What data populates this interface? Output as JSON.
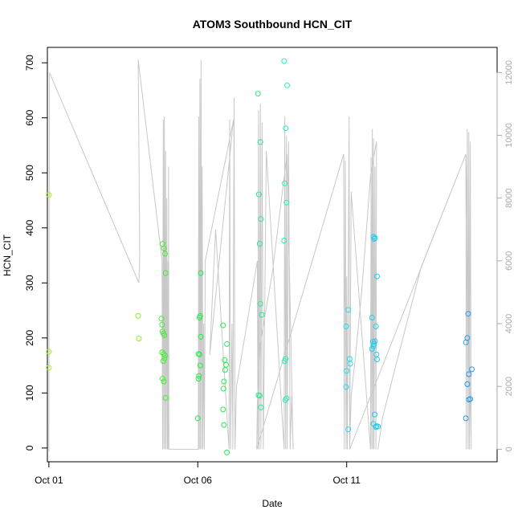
{
  "chart_data": {
    "type": "scatter",
    "title": "ATOM3 Southbound HCN_CIT",
    "xlabel": "Date",
    "ylabel": "HCN_CIT",
    "xlim": [
      -0.05,
      15.05
    ],
    "ylim": [
      -25,
      728
    ],
    "y2lim": [
      -400,
      12800
    ],
    "x_ticks": [
      {
        "value": 0,
        "label": "Oct 01"
      },
      {
        "value": 5,
        "label": "Oct 06"
      },
      {
        "value": 10,
        "label": "Oct 11"
      }
    ],
    "y_ticks": [
      0,
      100,
      200,
      300,
      400,
      500,
      600,
      700
    ],
    "y2_ticks": [
      0,
      2000,
      4000,
      6000,
      8000,
      10000,
      12000
    ],
    "grid": false,
    "secondary_series": {
      "color": "#c8c8c8",
      "points": [
        [
          0.0,
          -80
        ],
        [
          0.02,
          12000
        ],
        [
          3.02,
          5300
        ],
        [
          3.05,
          6100
        ],
        [
          3.0,
          12400
        ],
        [
          3.8,
          6000
        ],
        [
          3.82,
          0
        ],
        [
          3.84,
          10500
        ],
        [
          3.86,
          0
        ],
        [
          3.88,
          10600
        ],
        [
          3.9,
          0
        ],
        [
          3.92,
          9500
        ],
        [
          3.94,
          0
        ],
        [
          3.96,
          8000
        ],
        [
          3.98,
          0
        ],
        [
          4.0,
          6000
        ],
        [
          4.01,
          0
        ],
        [
          4.02,
          9000
        ],
        [
          4.03,
          0
        ],
        [
          5.02,
          0
        ],
        [
          5.03,
          10600
        ],
        [
          5.05,
          0
        ],
        [
          5.07,
          11800
        ],
        [
          5.09,
          0
        ],
        [
          5.11,
          12400
        ],
        [
          5.13,
          0
        ],
        [
          5.15,
          9000
        ],
        [
          5.17,
          0
        ],
        [
          5.2,
          4000
        ],
        [
          5.22,
          0
        ],
        [
          5.25,
          6000
        ],
        [
          6.2,
          10500
        ],
        [
          5.4,
          3000
        ],
        [
          5.6,
          7000
        ],
        [
          6.05,
          0
        ],
        [
          6.07,
          10500
        ],
        [
          6.1,
          0
        ],
        [
          6.15,
          4000
        ],
        [
          6.18,
          0
        ],
        [
          6.22,
          11200
        ],
        [
          6.25,
          0
        ],
        [
          6.3,
          2000
        ],
        [
          7.0,
          6000
        ],
        [
          7.02,
          0
        ],
        [
          7.04,
          10800
        ],
        [
          7.06,
          0
        ],
        [
          7.1,
          11000
        ],
        [
          7.12,
          0
        ],
        [
          7.16,
          10400
        ],
        [
          7.2,
          0
        ],
        [
          7.3,
          9500
        ],
        [
          7.9,
          0
        ],
        [
          7.92,
          10600
        ],
        [
          7.95,
          0
        ],
        [
          7.98,
          10000
        ],
        [
          8.0,
          0
        ],
        [
          8.05,
          9800
        ],
        [
          8.1,
          0
        ],
        [
          8.15,
          1700
        ],
        [
          8.2,
          0
        ],
        [
          8.0,
          9400
        ],
        [
          7.5,
          5600
        ],
        [
          7.1,
          3400
        ],
        [
          7.0,
          1500
        ],
        [
          6.98,
          0
        ],
        [
          9.9,
          9400
        ],
        [
          9.92,
          0
        ],
        [
          9.95,
          9200
        ],
        [
          9.98,
          0
        ],
        [
          10.0,
          5500
        ],
        [
          10.02,
          0
        ],
        [
          10.08,
          10600
        ],
        [
          10.1,
          0
        ],
        [
          10.15,
          8200
        ],
        [
          10.8,
          0
        ],
        [
          10.82,
          9300
        ],
        [
          10.84,
          0
        ],
        [
          10.86,
          10200
        ],
        [
          10.88,
          0
        ],
        [
          10.9,
          9900
        ],
        [
          10.92,
          0
        ],
        [
          10.95,
          9000
        ],
        [
          10.98,
          0
        ],
        [
          11.0,
          9800
        ],
        [
          10.8,
          8700
        ],
        [
          10.5,
          5000
        ],
        [
          10.3,
          3000
        ],
        [
          10.15,
          1700
        ],
        [
          10.1,
          0
        ],
        [
          14.0,
          9400
        ],
        [
          14.02,
          0
        ],
        [
          14.05,
          10200
        ],
        [
          14.08,
          0
        ],
        [
          14.1,
          10100
        ],
        [
          14.12,
          0
        ],
        [
          14.15,
          9800
        ],
        [
          14.18,
          0
        ],
        [
          14.0,
          9400
        ],
        [
          12.5,
          5800
        ],
        [
          11.2,
          1000
        ],
        [
          11.05,
          0
        ]
      ]
    },
    "series": [
      {
        "color": "#aaee22",
        "points": [
          [
            0.0,
            460
          ],
          [
            0.0,
            175
          ],
          [
            0.0,
            146
          ]
        ]
      },
      {
        "color": "#88ee22",
        "points": [
          [
            3.0,
            240
          ],
          [
            3.02,
            199
          ]
        ]
      },
      {
        "color": "#44ee33",
        "points": [
          [
            3.82,
            371
          ],
          [
            3.86,
            363
          ],
          [
            3.9,
            353
          ],
          [
            3.92,
            318
          ],
          [
            3.78,
            235
          ],
          [
            3.8,
            224
          ],
          [
            3.82,
            212
          ],
          [
            3.84,
            208
          ],
          [
            3.88,
            205
          ],
          [
            3.8,
            174
          ],
          [
            3.85,
            171
          ],
          [
            3.9,
            168
          ],
          [
            3.88,
            163
          ],
          [
            3.84,
            158
          ],
          [
            3.82,
            126
          ],
          [
            3.86,
            121
          ],
          [
            3.92,
            91
          ]
        ]
      },
      {
        "color": "#22ee44",
        "points": [
          [
            5.1,
            318
          ],
          [
            5.08,
            240
          ],
          [
            5.06,
            237
          ],
          [
            5.1,
            202
          ],
          [
            5.02,
            171
          ],
          [
            5.06,
            170
          ],
          [
            5.08,
            150
          ],
          [
            5.04,
            131
          ],
          [
            5.02,
            126
          ],
          [
            5.0,
            54
          ]
        ]
      },
      {
        "color": "#22ee55",
        "points": [
          [
            5.85,
            223
          ],
          [
            5.98,
            189
          ],
          [
            5.9,
            160
          ],
          [
            5.95,
            151
          ],
          [
            5.92,
            142
          ],
          [
            5.88,
            121
          ],
          [
            5.86,
            108
          ],
          [
            5.85,
            70
          ],
          [
            5.88,
            42
          ],
          [
            5.98,
            -8
          ]
        ]
      },
      {
        "color": "#22ee88",
        "points": [
          [
            7.02,
            644
          ],
          [
            7.1,
            556
          ],
          [
            7.05,
            461
          ],
          [
            7.12,
            416
          ],
          [
            7.08,
            371
          ],
          [
            7.1,
            262
          ],
          [
            7.15,
            242
          ],
          [
            7.04,
            96
          ],
          [
            7.08,
            95
          ],
          [
            7.12,
            74
          ]
        ]
      },
      {
        "color": "#22eebb",
        "points": [
          [
            7.9,
            703
          ],
          [
            8.0,
            659
          ],
          [
            7.95,
            581
          ],
          [
            7.92,
            481
          ],
          [
            7.98,
            446
          ],
          [
            7.9,
            377
          ],
          [
            7.95,
            162
          ],
          [
            7.92,
            158
          ],
          [
            7.98,
            90
          ],
          [
            7.94,
            87
          ]
        ]
      },
      {
        "color": "#22ddee",
        "points": [
          [
            10.05,
            251
          ],
          [
            9.98,
            221
          ],
          [
            10.1,
            162
          ],
          [
            10.12,
            153
          ],
          [
            10.0,
            140
          ],
          [
            9.98,
            111
          ],
          [
            10.05,
            34
          ]
        ]
      },
      {
        "color": "#22ccee",
        "points": [
          [
            10.9,
            384
          ],
          [
            10.95,
            382
          ],
          [
            10.92,
            380
          ],
          [
            11.02,
            312
          ],
          [
            10.85,
            237
          ],
          [
            10.98,
            221
          ],
          [
            10.88,
            193
          ],
          [
            10.92,
            189
          ],
          [
            10.9,
            185
          ],
          [
            10.95,
            194
          ],
          [
            10.85,
            180
          ],
          [
            11.0,
            170
          ],
          [
            11.02,
            161
          ],
          [
            10.94,
            61
          ],
          [
            10.9,
            44
          ],
          [
            11.0,
            40
          ],
          [
            11.05,
            39
          ],
          [
            10.98,
            38
          ]
        ]
      },
      {
        "color": "#2299ee",
        "points": [
          [
            14.08,
            244
          ],
          [
            14.05,
            200
          ],
          [
            14.0,
            192
          ],
          [
            14.2,
            143
          ],
          [
            14.1,
            134
          ],
          [
            14.05,
            116
          ],
          [
            14.15,
            89
          ],
          [
            14.1,
            88
          ],
          [
            14.0,
            54
          ]
        ]
      }
    ]
  }
}
